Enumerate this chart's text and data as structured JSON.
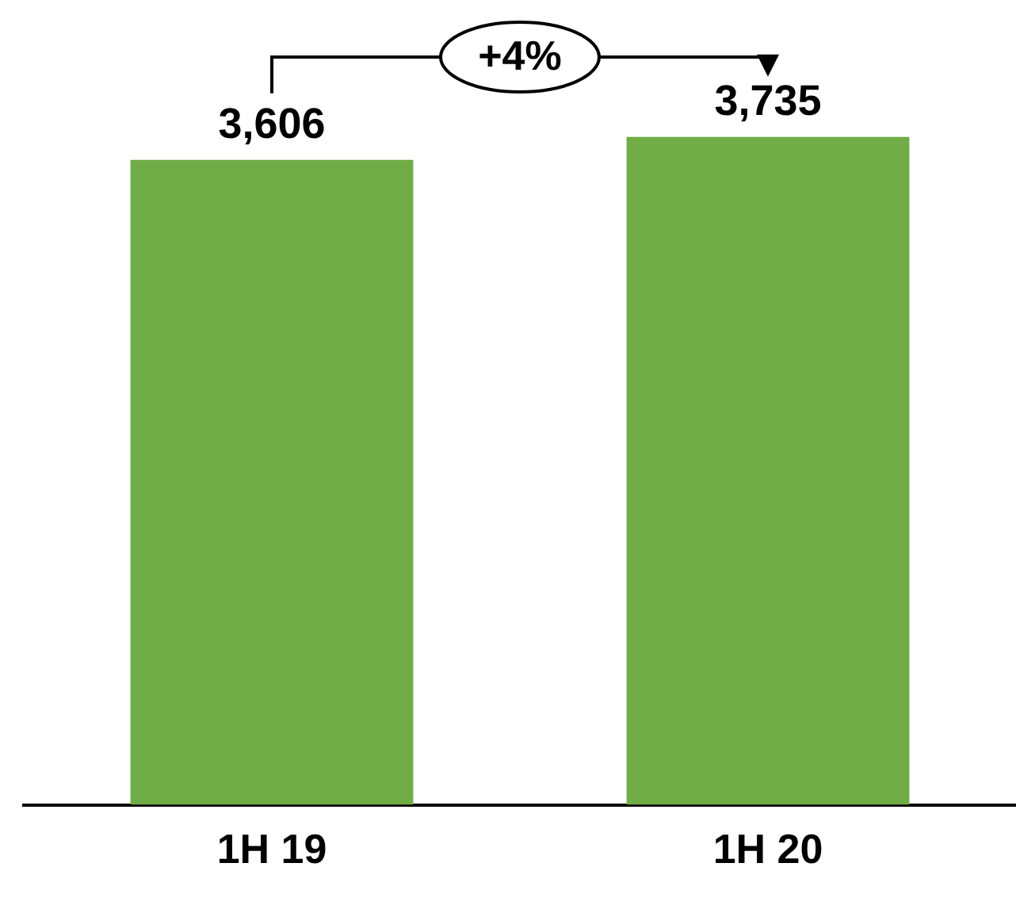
{
  "chart_data": {
    "type": "bar",
    "categories": [
      "1H 19",
      "1H 20"
    ],
    "values": [
      3606,
      3735
    ],
    "color": "#70ad47",
    "tick_labels": "x",
    "grid": false,
    "legend": false,
    "value_labels": [
      "3,606",
      "3,735"
    ],
    "annotations": [
      "+4%"
    ]
  }
}
